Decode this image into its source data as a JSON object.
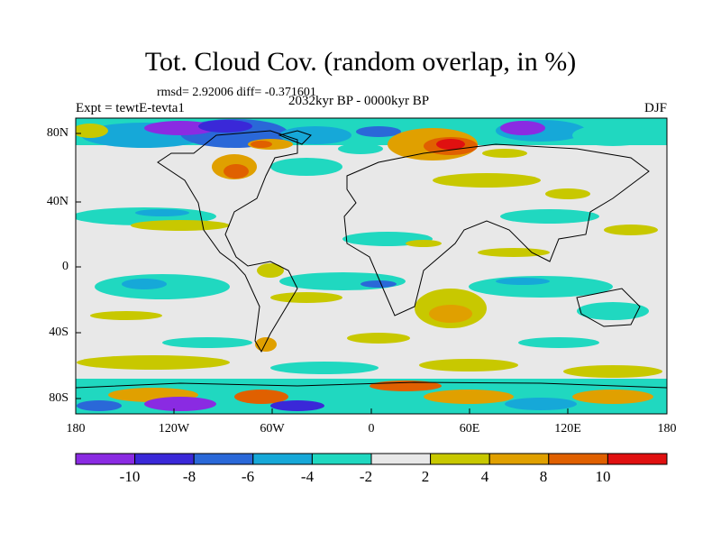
{
  "title": "Tot. Cloud Cov. (random overlap, in %)",
  "stats": "rmsd= 2.92006 diff= -0.371601",
  "experiment": "Expt = tewtE-tevta1",
  "period": "2032kyr BP - 0000kyr BP",
  "season": "DJF",
  "lat_labels": [
    "80N",
    "40N",
    "0",
    "40S",
    "80S"
  ],
  "lon_labels": [
    "180",
    "120W",
    "60W",
    "0",
    "60E",
    "120E",
    "180"
  ],
  "colorbar": {
    "labels": [
      "-10",
      "-8",
      "-6",
      "-4",
      "-2",
      "2",
      "4",
      "8",
      "10"
    ],
    "colors": [
      "#8a2be2",
      "#3a28d8",
      "#2a68d8",
      "#16a8d8",
      "#20d8c0",
      "#e8e8e8",
      "#c8c800",
      "#e0a000",
      "#e06000",
      "#e01010"
    ]
  },
  "chart_data": {
    "type": "heatmap",
    "title": "Tot. Cloud Cov. (random overlap, in %)",
    "variable": "Total cloud cover difference (%)",
    "season": "DJF",
    "x_range": [
      -180,
      180
    ],
    "y_range": [
      -90,
      90
    ],
    "levels": [
      -10,
      -8,
      -6,
      -4,
      -2,
      2,
      4,
      8,
      10
    ]
  }
}
